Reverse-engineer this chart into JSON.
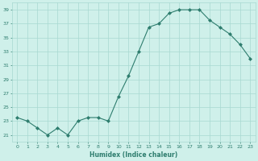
{
  "x": [
    0,
    1,
    2,
    3,
    4,
    5,
    6,
    7,
    8,
    9,
    10,
    11,
    12,
    13,
    14,
    15,
    16,
    17,
    18,
    19,
    20,
    21,
    22,
    23
  ],
  "y": [
    23.5,
    23.0,
    22.0,
    21.0,
    22.0,
    21.0,
    23.0,
    23.5,
    23.5,
    23.0,
    26.5,
    29.5,
    33.0,
    36.5,
    37.0,
    38.5,
    39.0,
    39.0,
    39.0,
    37.5,
    36.5,
    35.5,
    34.0,
    32.0
  ],
  "xlabel": "Humidex (Indice chaleur)",
  "xlim": [
    -0.5,
    23.5
  ],
  "ylim": [
    20,
    40
  ],
  "yticks": [
    21,
    23,
    25,
    27,
    29,
    31,
    33,
    35,
    37,
    39
  ],
  "xticks": [
    0,
    1,
    2,
    3,
    4,
    5,
    6,
    7,
    8,
    9,
    10,
    11,
    12,
    13,
    14,
    15,
    16,
    17,
    18,
    19,
    20,
    21,
    22,
    23
  ],
  "line_color": "#2e7d6e",
  "bg_color": "#cff0ea",
  "grid_color": "#a8d9d1"
}
